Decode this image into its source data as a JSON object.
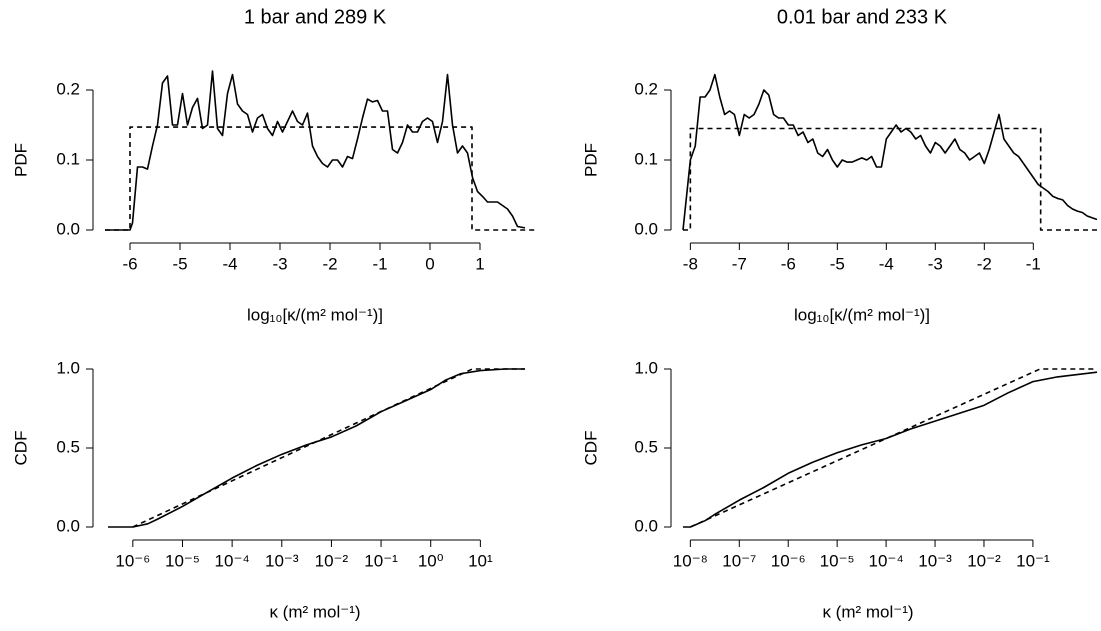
{
  "chart_data": [
    {
      "type": "line",
      "title": "1 bar and 289 K",
      "y_label": "PDF",
      "x_label": "log₁₀[κ/(m² mol⁻¹)]",
      "xlim": [
        -6.5,
        2.1
      ],
      "ylim": [
        0,
        0.23
      ],
      "xticks": [
        -6,
        -5,
        -4,
        -3,
        -2,
        -1,
        0,
        1
      ],
      "yticks": [
        {
          "value": 0,
          "label": "0.0"
        },
        0.1,
        0.2
      ],
      "series": [
        {
          "style": "solid",
          "color": "#000000",
          "x": [
            -6.5,
            -6.0,
            -5.95,
            -5.85,
            -5.75,
            -5.65,
            -5.55,
            -5.45,
            -5.35,
            -5.25,
            -5.15,
            -5.05,
            -4.95,
            -4.85,
            -4.75,
            -4.65,
            -4.55,
            -4.45,
            -4.35,
            -4.25,
            -4.15,
            -4.05,
            -3.95,
            -3.85,
            -3.75,
            -3.65,
            -3.55,
            -3.45,
            -3.35,
            -3.25,
            -3.15,
            -3.05,
            -2.95,
            -2.85,
            -2.75,
            -2.65,
            -2.55,
            -2.45,
            -2.35,
            -2.25,
            -2.15,
            -2.05,
            -1.95,
            -1.85,
            -1.75,
            -1.65,
            -1.55,
            -1.45,
            -1.35,
            -1.25,
            -1.15,
            -1.05,
            -0.95,
            -0.85,
            -0.75,
            -0.65,
            -0.55,
            -0.45,
            -0.35,
            -0.25,
            -0.15,
            -0.05,
            0.05,
            0.15,
            0.25,
            0.35,
            0.45,
            0.55,
            0.65,
            0.75,
            0.85,
            0.95,
            1.05,
            1.15,
            1.25,
            1.35,
            1.45,
            1.55,
            1.65,
            1.75,
            1.9
          ],
          "values": [
            0,
            0,
            0.01,
            0.09,
            0.09,
            0.087,
            0.12,
            0.15,
            0.21,
            0.22,
            0.15,
            0.15,
            0.195,
            0.15,
            0.175,
            0.188,
            0.145,
            0.15,
            0.227,
            0.145,
            0.135,
            0.195,
            0.222,
            0.18,
            0.17,
            0.165,
            0.14,
            0.16,
            0.165,
            0.145,
            0.135,
            0.155,
            0.14,
            0.155,
            0.17,
            0.155,
            0.15,
            0.167,
            0.12,
            0.105,
            0.095,
            0.09,
            0.1,
            0.1,
            0.09,
            0.105,
            0.102,
            0.13,
            0.16,
            0.187,
            0.183,
            0.185,
            0.17,
            0.17,
            0.115,
            0.11,
            0.125,
            0.15,
            0.14,
            0.14,
            0.155,
            0.16,
            0.155,
            0.125,
            0.155,
            0.222,
            0.15,
            0.11,
            0.12,
            0.11,
            0.075,
            0.055,
            0.048,
            0.04,
            0.04,
            0.04,
            0.035,
            0.03,
            0.02,
            0.005,
            0.003
          ]
        },
        {
          "style": "dashed",
          "color": "#000000",
          "x": [
            -6.5,
            -6.0,
            -6.0,
            0.84,
            0.84,
            2.1
          ],
          "values": [
            0,
            0,
            0.147,
            0.147,
            0,
            0
          ]
        }
      ]
    },
    {
      "type": "line",
      "title": "0.01 bar and 233 K",
      "y_label": "PDF",
      "x_label": "log₁₀[κ/(m² mol⁻¹)]",
      "xlim": [
        -8.15,
        0.3
      ],
      "ylim": [
        0,
        0.23
      ],
      "xticks": [
        -8,
        -7,
        -6,
        -5,
        -4,
        -3,
        -2,
        -1
      ],
      "yticks": [
        {
          "value": 0,
          "label": "0.0"
        },
        0.1,
        0.2
      ],
      "series": [
        {
          "style": "solid",
          "color": "#000000",
          "x": [
            -8.15,
            -8.0,
            -7.9,
            -7.8,
            -7.7,
            -7.6,
            -7.5,
            -7.4,
            -7.3,
            -7.2,
            -7.1,
            -7.0,
            -6.9,
            -6.8,
            -6.7,
            -6.6,
            -6.5,
            -6.4,
            -6.3,
            -6.2,
            -6.1,
            -6.0,
            -5.9,
            -5.8,
            -5.7,
            -5.6,
            -5.5,
            -5.4,
            -5.3,
            -5.2,
            -5.1,
            -5.0,
            -4.9,
            -4.8,
            -4.7,
            -4.6,
            -4.5,
            -4.4,
            -4.3,
            -4.2,
            -4.1,
            -4.0,
            -3.9,
            -3.8,
            -3.7,
            -3.6,
            -3.5,
            -3.4,
            -3.3,
            -3.2,
            -3.1,
            -3.0,
            -2.9,
            -2.8,
            -2.7,
            -2.6,
            -2.5,
            -2.4,
            -2.3,
            -2.2,
            -2.1,
            -2.0,
            -1.9,
            -1.8,
            -1.7,
            -1.6,
            -1.5,
            -1.4,
            -1.3,
            -1.2,
            -1.1,
            -1.0,
            -0.9,
            -0.8,
            -0.7,
            -0.6,
            -0.5,
            -0.4,
            -0.3,
            -0.2,
            -0.1,
            0.0,
            0.1,
            0.3
          ],
          "values": [
            0,
            0.1,
            0.12,
            0.19,
            0.19,
            0.2,
            0.222,
            0.19,
            0.165,
            0.17,
            0.165,
            0.135,
            0.165,
            0.16,
            0.165,
            0.18,
            0.2,
            0.193,
            0.165,
            0.16,
            0.16,
            0.15,
            0.15,
            0.135,
            0.14,
            0.125,
            0.13,
            0.11,
            0.105,
            0.115,
            0.1,
            0.09,
            0.1,
            0.097,
            0.097,
            0.1,
            0.103,
            0.1,
            0.105,
            0.09,
            0.09,
            0.13,
            0.14,
            0.15,
            0.14,
            0.145,
            0.14,
            0.13,
            0.135,
            0.12,
            0.11,
            0.125,
            0.12,
            0.11,
            0.12,
            0.13,
            0.115,
            0.11,
            0.1,
            0.105,
            0.11,
            0.095,
            0.115,
            0.14,
            0.165,
            0.13,
            0.12,
            0.11,
            0.105,
            0.095,
            0.085,
            0.075,
            0.065,
            0.06,
            0.055,
            0.048,
            0.045,
            0.043,
            0.035,
            0.03,
            0.027,
            0.025,
            0.02,
            0.015
          ]
        },
        {
          "style": "dashed",
          "color": "#000000",
          "x": [
            -8.15,
            -8.0,
            -8.0,
            -0.85,
            -0.85,
            0.3
          ],
          "values": [
            0,
            0,
            0.145,
            0.145,
            0,
            0
          ]
        }
      ]
    },
    {
      "type": "line",
      "y_label": "CDF",
      "x_label": "κ  (m² mol⁻¹)",
      "xlog": true,
      "xlim": [
        2.75e-07,
        126
      ],
      "ylim": [
        0,
        1
      ],
      "xticks": [
        {
          "value": 1e-06,
          "label": "10⁻⁶"
        },
        {
          "value": 1e-05,
          "label": "10⁻⁵"
        },
        {
          "value": 0.0001,
          "label": "10⁻⁴"
        },
        {
          "value": 0.001,
          "label": "10⁻³"
        },
        {
          "value": 0.01,
          "label": "10⁻²"
        },
        {
          "value": 0.1,
          "label": "10⁻¹"
        },
        {
          "value": 1,
          "label": "10⁰"
        },
        {
          "value": 10,
          "label": "10¹"
        }
      ],
      "yticks": [
        {
          "value": 0,
          "label": "0.0"
        },
        0.5,
        {
          "value": 1,
          "label": "1.0"
        }
      ],
      "series": [
        {
          "style": "solid",
          "color": "#000000",
          "x": [
            3.16e-07,
            1e-06,
            2e-06,
            3.16e-06,
            1e-05,
            3.16e-05,
            0.0001,
            0.000316,
            0.001,
            0.00316,
            0.01,
            0.0316,
            0.1,
            0.316,
            1,
            2,
            4,
            10,
            31.6,
            79
          ],
          "values": [
            0,
            0,
            0.02,
            0.05,
            0.13,
            0.22,
            0.31,
            0.39,
            0.46,
            0.52,
            0.57,
            0.64,
            0.73,
            0.8,
            0.87,
            0.93,
            0.97,
            0.99,
            1.0,
            1.0
          ]
        },
        {
          "style": "dashed",
          "color": "#000000",
          "x": [
            1e-06,
            6.9,
            79
          ],
          "values": [
            0,
            1,
            1
          ]
        }
      ]
    },
    {
      "type": "line",
      "y_label": "CDF",
      "x_label": "κ  (m² mol⁻¹)",
      "xlog": true,
      "xlim": [
        7.08e-09,
        2.04
      ],
      "ylim": [
        0,
        1
      ],
      "xticks": [
        {
          "value": 1e-08,
          "label": "10⁻⁸"
        },
        {
          "value": 1e-07,
          "label": "10⁻⁷"
        },
        {
          "value": 1e-06,
          "label": "10⁻⁶"
        },
        {
          "value": 1e-05,
          "label": "10⁻⁵"
        },
        {
          "value": 0.0001,
          "label": "10⁻⁴"
        },
        {
          "value": 0.001,
          "label": "10⁻³"
        },
        {
          "value": 0.01,
          "label": "10⁻²"
        },
        {
          "value": 0.1,
          "label": "10⁻¹"
        }
      ],
      "yticks": [
        {
          "value": 0,
          "label": "0.0"
        },
        0.5,
        {
          "value": 1,
          "label": "1.0"
        }
      ],
      "series": [
        {
          "style": "solid",
          "color": "#000000",
          "x": [
            7.08e-09,
            1e-08,
            2e-08,
            3.16e-08,
            1e-07,
            3.16e-07,
            1e-06,
            3.16e-06,
            1e-05,
            3.16e-05,
            0.0001,
            0.000316,
            0.001,
            0.00316,
            0.01,
            0.0316,
            0.1,
            0.316,
            2.04
          ],
          "values": [
            0,
            0,
            0.04,
            0.08,
            0.17,
            0.25,
            0.34,
            0.41,
            0.47,
            0.52,
            0.56,
            0.62,
            0.67,
            0.72,
            0.77,
            0.85,
            0.92,
            0.95,
            0.98
          ]
        },
        {
          "style": "dashed",
          "color": "#000000",
          "x": [
            1e-08,
            0.14,
            2.04
          ],
          "values": [
            0,
            1,
            1
          ]
        }
      ]
    }
  ]
}
